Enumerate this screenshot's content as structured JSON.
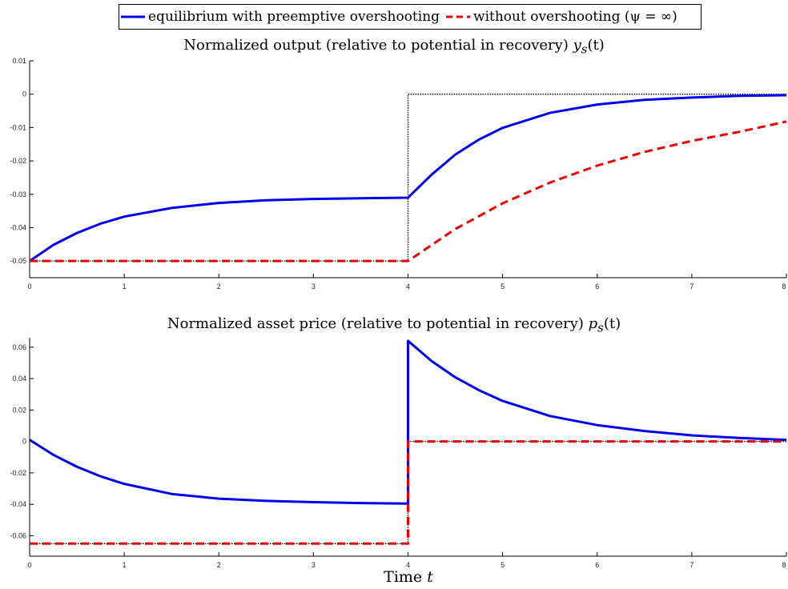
{
  "legend": {
    "series1": "equilibrium with preemptive overshooting",
    "series2": "without overshooting (ψ = ∞)"
  },
  "chart_data": [
    {
      "type": "line",
      "title": "Normalized output (relative to potential in recovery) y_s(t)",
      "title_text": "Normalized output (relative to potential in recovery)",
      "title_math": "y",
      "title_sub": "s",
      "title_arg": "(t)",
      "xlim": [
        0,
        8
      ],
      "ylim": [
        -0.055,
        0.01
      ],
      "xticks": [
        0,
        1,
        2,
        3,
        4,
        5,
        6,
        7,
        8
      ],
      "yticks": [
        0.01,
        0,
        -0.01,
        -0.02,
        -0.03,
        -0.04,
        -0.05
      ],
      "ytick_labels": [
        "0.01",
        "0",
        "-0.01",
        "-0.02",
        "-0.03",
        "-0.04",
        "-0.05"
      ],
      "grid": false,
      "series": [
        {
          "name": "equilibrium with preemptive overshooting",
          "color": "#0000ee",
          "style": "solid",
          "x": [
            0,
            0.25,
            0.5,
            0.75,
            1,
            1.5,
            2,
            2.5,
            3,
            3.5,
            4,
            4.25,
            4.5,
            4.75,
            5,
            5.5,
            6,
            6.5,
            7,
            7.5,
            8
          ],
          "y": [
            -0.05,
            -0.0452,
            -0.0416,
            -0.0388,
            -0.0367,
            -0.0341,
            -0.0326,
            -0.0318,
            -0.0314,
            -0.0312,
            -0.031,
            -0.0241,
            -0.0181,
            -0.0136,
            -0.0101,
            -0.0056,
            -0.0031,
            -0.0017,
            -0.001,
            -0.0005,
            -0.0003
          ]
        },
        {
          "name": "without overshooting (ψ = ∞)",
          "color": "#ee0000",
          "style": "dashed",
          "x": [
            0,
            1,
            2,
            3,
            4,
            4.5,
            5,
            5.5,
            6,
            6.5,
            7,
            7.5,
            8
          ],
          "y": [
            -0.05,
            -0.05,
            -0.05,
            -0.05,
            -0.05,
            -0.0404,
            -0.0327,
            -0.0265,
            -0.0214,
            -0.0173,
            -0.014,
            -0.0113,
            -0.0082
          ]
        },
        {
          "name": "",
          "color": "#000000",
          "style": "dotted",
          "x": [
            0,
            4,
            4,
            8
          ],
          "y": [
            -0.05,
            -0.05,
            0,
            0
          ]
        }
      ]
    },
    {
      "type": "line",
      "title": "Normalized asset price (relative to potential in recovery) p_s(t)",
      "title_text": "Normalized asset price (relative to potential in recovery)",
      "title_math": "p",
      "title_sub": "s",
      "title_arg": "(t)",
      "xlim": [
        0,
        8
      ],
      "ylim": [
        -0.073,
        0.066
      ],
      "xticks": [
        0,
        1,
        2,
        3,
        4,
        5,
        6,
        7,
        8
      ],
      "yticks": [
        0.06,
        0.04,
        0.02,
        0,
        -0.02,
        -0.04,
        -0.06
      ],
      "ytick_labels": [
        "0.06",
        "0.04",
        "0.02",
        "0",
        "-0.02",
        "-0.04",
        "-0.06"
      ],
      "grid": false,
      "xlabel_text": "Time",
      "xlabel_math": "t",
      "series": [
        {
          "name": "equilibrium with preemptive overshooting",
          "color": "#0000ee",
          "style": "solid",
          "x": [
            0,
            0.25,
            0.5,
            0.75,
            1,
            1.5,
            2,
            2.5,
            3,
            3.5,
            4,
            4,
            4.25,
            4.5,
            4.75,
            5,
            5.5,
            6,
            6.5,
            7,
            7.5,
            8
          ],
          "y": [
            0.001,
            -0.0085,
            -0.0161,
            -0.0222,
            -0.027,
            -0.0334,
            -0.0364,
            -0.0378,
            -0.0386,
            -0.0392,
            -0.0395,
            0.064,
            0.0511,
            0.0408,
            0.0326,
            0.0258,
            0.0162,
            0.0104,
            0.0066,
            0.0039,
            0.0022,
            0.001
          ]
        },
        {
          "name": "without overshooting (ψ = ∞)",
          "color": "#ee0000",
          "style": "dashed",
          "x": [
            0,
            4,
            4,
            8
          ],
          "y": [
            -0.065,
            -0.065,
            0,
            0
          ]
        },
        {
          "name": "",
          "color": "#000000",
          "style": "dotted",
          "x": [
            0,
            4,
            4,
            8
          ],
          "y": [
            -0.065,
            -0.065,
            0,
            0
          ]
        }
      ]
    }
  ]
}
